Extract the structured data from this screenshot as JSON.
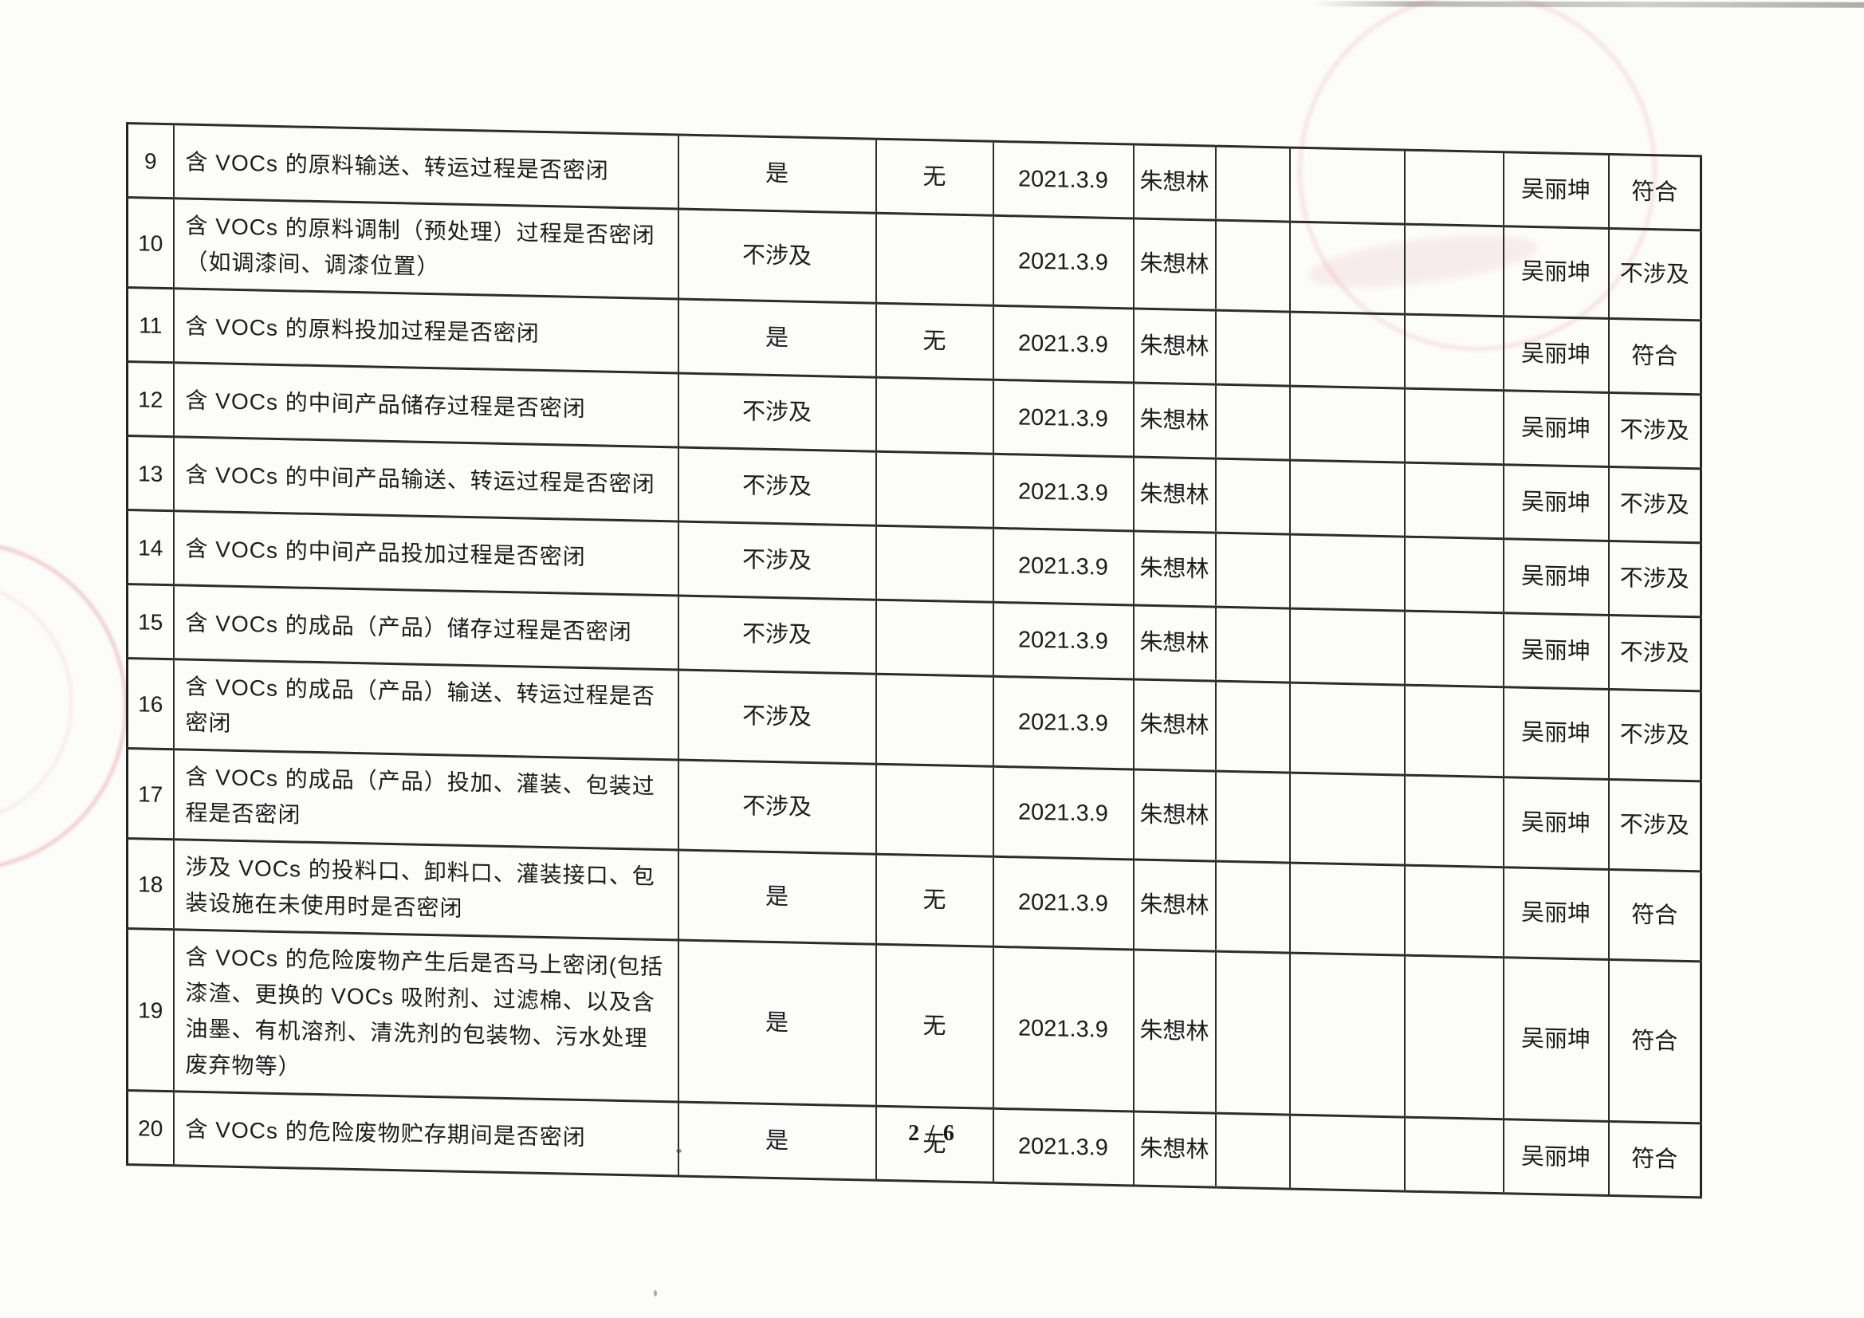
{
  "document": {
    "page_label": "2 / 6"
  },
  "colors": {
    "ink": "#1c1c1c",
    "grid": "#2c2c2c",
    "stamp_red": "#cf5b5b"
  },
  "table": {
    "rows": [
      {
        "no": "9",
        "question": "含 VOCs 的原料输送、转运过程是否密闭",
        "result": "是",
        "remark": "无",
        "date": "2021.3.9",
        "inspector": "朱想林",
        "blank1": "",
        "blank2": "",
        "blank3": "",
        "reviewer": "吴丽坤",
        "conclusion": "符合"
      },
      {
        "no": "10",
        "question": "含 VOCs 的原料调制（预处理）过程是否密闭（如调漆间、调漆位置）",
        "result": "不涉及",
        "remark": "",
        "date": "2021.3.9",
        "inspector": "朱想林",
        "blank1": "",
        "blank2": "",
        "blank3": "",
        "reviewer": "吴丽坤",
        "conclusion": "不涉及"
      },
      {
        "no": "11",
        "question": "含 VOCs 的原料投加过程是否密闭",
        "result": "是",
        "remark": "无",
        "date": "2021.3.9",
        "inspector": "朱想林",
        "blank1": "",
        "blank2": "",
        "blank3": "",
        "reviewer": "吴丽坤",
        "conclusion": "符合"
      },
      {
        "no": "12",
        "question": "含 VOCs 的中间产品储存过程是否密闭",
        "result": "不涉及",
        "remark": "",
        "date": "2021.3.9",
        "inspector": "朱想林",
        "blank1": "",
        "blank2": "",
        "blank3": "",
        "reviewer": "吴丽坤",
        "conclusion": "不涉及"
      },
      {
        "no": "13",
        "question": "含 VOCs 的中间产品输送、转运过程是否密闭",
        "result": "不涉及",
        "remark": "",
        "date": "2021.3.9",
        "inspector": "朱想林",
        "blank1": "",
        "blank2": "",
        "blank3": "",
        "reviewer": "吴丽坤",
        "conclusion": "不涉及"
      },
      {
        "no": "14",
        "question": "含 VOCs 的中间产品投加过程是否密闭",
        "result": "不涉及",
        "remark": "",
        "date": "2021.3.9",
        "inspector": "朱想林",
        "blank1": "",
        "blank2": "",
        "blank3": "",
        "reviewer": "吴丽坤",
        "conclusion": "不涉及"
      },
      {
        "no": "15",
        "question": "含 VOCs 的成品（产品）储存过程是否密闭",
        "result": "不涉及",
        "remark": "",
        "date": "2021.3.9",
        "inspector": "朱想林",
        "blank1": "",
        "blank2": "",
        "blank3": "",
        "reviewer": "吴丽坤",
        "conclusion": "不涉及"
      },
      {
        "no": "16",
        "question": "含 VOCs 的成品（产品）输送、转运过程是否密闭",
        "result": "不涉及",
        "remark": "",
        "date": "2021.3.9",
        "inspector": "朱想林",
        "blank1": "",
        "blank2": "",
        "blank3": "",
        "reviewer": "吴丽坤",
        "conclusion": "不涉及"
      },
      {
        "no": "17",
        "question": "含 VOCs 的成品（产品）投加、灌装、包装过程是否密闭",
        "result": "不涉及",
        "remark": "",
        "date": "2021.3.9",
        "inspector": "朱想林",
        "blank1": "",
        "blank2": "",
        "blank3": "",
        "reviewer": "吴丽坤",
        "conclusion": "不涉及"
      },
      {
        "no": "18",
        "question": "涉及 VOCs 的投料口、卸料口、灌装接口、包装设施在未使用时是否密闭",
        "result": "是",
        "remark": "无",
        "date": "2021.3.9",
        "inspector": "朱想林",
        "blank1": "",
        "blank2": "",
        "blank3": "",
        "reviewer": "吴丽坤",
        "conclusion": "符合"
      },
      {
        "no": "19",
        "question": "含 VOCs 的危险废物产生后是否马上密闭(包括漆渣、更换的 VOCs 吸附剂、过滤棉、以及含油墨、有机溶剂、清洗剂的包装物、污水处理废弃物等）",
        "result": "是",
        "remark": "无",
        "date": "2021.3.9",
        "inspector": "朱想林",
        "blank1": "",
        "blank2": "",
        "blank3": "",
        "reviewer": "吴丽坤",
        "conclusion": "符合"
      },
      {
        "no": "20",
        "question": "含 VOCs 的危险废物贮存期间是否密闭",
        "result": "是",
        "remark": "无",
        "date": "2021.3.9",
        "inspector": "朱想林",
        "blank1": "",
        "blank2": "",
        "blank3": "",
        "reviewer": "吴丽坤",
        "conclusion": "符合"
      }
    ]
  }
}
